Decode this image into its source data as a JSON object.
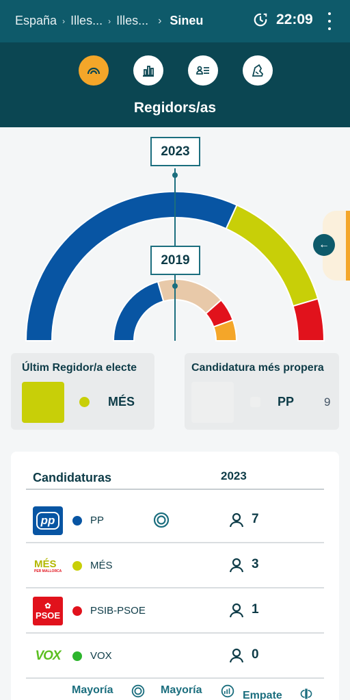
{
  "breadcrumb": {
    "items": [
      "España",
      "Illes...",
      "Illes...",
      "Sineu"
    ]
  },
  "clock": {
    "time": "22:09"
  },
  "header": {
    "title": "Regidors/as",
    "nav": [
      "hemicycle",
      "bar-chart",
      "candidate-list",
      "map"
    ]
  },
  "chart_data": {
    "type": "hemicycle",
    "rings": [
      {
        "year": "2023",
        "segments": [
          {
            "party": "PP",
            "seats": 7,
            "color": "#0855a3"
          },
          {
            "party": "MÉS",
            "seats": 3,
            "color": "#c8cf08"
          },
          {
            "party": "PSIB-PSOE",
            "seats": 1,
            "color": "#e1121c"
          }
        ]
      },
      {
        "year": "2019",
        "segments": [
          {
            "party": "PP",
            "value": 0.41,
            "color": "#0855a3"
          },
          {
            "party": "",
            "value": 0.36,
            "color": "#e8c9a9"
          },
          {
            "party": "PSIB-PSOE",
            "value": 0.12,
            "color": "#e1121c"
          },
          {
            "party": "",
            "value": 0.11,
            "color": "#f4a629"
          }
        ]
      }
    ]
  },
  "cards": {
    "last_elected": {
      "title": "Últim Regidor/a electe",
      "party": "MÉS",
      "color": "#c8cf08"
    },
    "closest": {
      "title": "Candidatura més propera",
      "party": "PP",
      "seats": "9"
    }
  },
  "table": {
    "header_label": "Candidaturas",
    "header_year": "2023",
    "rows": [
      {
        "logo_text": "pp",
        "name": "PP",
        "color": "#0855a3",
        "seats": "7",
        "majority": true
      },
      {
        "logo_text": "MÉS",
        "logo_sub": "PER MALLORCA",
        "name": "MÉS",
        "color": "#c8cf08",
        "seats": "3",
        "majority": false
      },
      {
        "logo_text": "PSOE",
        "name": "PSIB-PSOE",
        "color": "#e1121c",
        "seats": "1",
        "majority": false
      },
      {
        "logo_text": "VOX",
        "name": "VOX",
        "color": "#2db52d",
        "seats": "0",
        "majority": false
      }
    ]
  },
  "legend": {
    "majority_1": "Mayoría",
    "majority_2": "Mayoría",
    "tie": "Empate"
  },
  "colors": {
    "accent": "#f4a629",
    "teal_dark": "#0b4652",
    "teal": "#0e5a6a"
  }
}
